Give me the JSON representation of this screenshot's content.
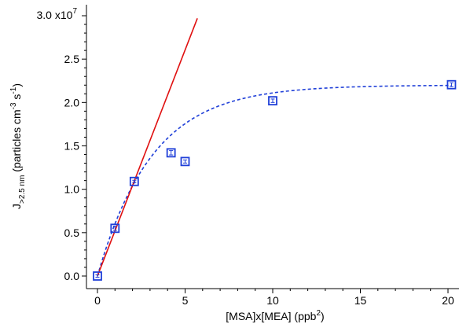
{
  "chart_data": {
    "type": "scatter",
    "x_axis": {
      "label_main": "[MSA]x[MEA] (ppb",
      "label_sup": "2",
      "label_close": ")",
      "ticks": [
        0,
        5,
        10,
        15,
        20
      ],
      "tick_labels": [
        "0",
        "5",
        "10",
        "15",
        "20"
      ],
      "minor_ticks": [
        1,
        2,
        3,
        4,
        6,
        7,
        8,
        9,
        11,
        12,
        13,
        14,
        16,
        17,
        18,
        19
      ],
      "range": [
        -0.7,
        20.4
      ]
    },
    "y_axis": {
      "label_main": "J",
      "label_sub": ">2.5 nm",
      "label_mid": " (particles cm",
      "label_sup1": "-3",
      "label_mid2": " s",
      "label_sup2": "-1",
      "label_close": ")",
      "ticks": [
        0,
        5000000,
        10000000,
        15000000,
        20000000,
        25000000,
        30000000
      ],
      "tick_labels": [
        "0.0",
        "0.5",
        "1.0",
        "1.5",
        "2.0",
        "2.5",
        ""
      ],
      "top_label_main": "3.0 x10",
      "top_label_exp": "7",
      "minor_ticks": [
        1000000,
        2000000,
        3000000,
        4000000,
        6000000,
        7000000,
        8000000,
        9000000,
        11000000,
        12000000,
        13000000,
        14000000,
        16000000,
        17000000,
        18000000,
        19000000,
        21000000,
        22000000,
        23000000,
        24000000,
        26000000,
        27000000,
        28000000,
        29000000
      ],
      "range": [
        -300000,
        30000000
      ]
    },
    "series": [
      {
        "type": "scatter",
        "marker": "open-square",
        "color": "#1f3fd8",
        "points": [
          {
            "x": 0,
            "y": 0,
            "err": 60000
          },
          {
            "x": 1,
            "y": 5500000,
            "err": 250000
          },
          {
            "x": 2.1,
            "y": 10900000,
            "err": 120000
          },
          {
            "x": 4.2,
            "y": 14200000,
            "err": 250000
          },
          {
            "x": 5,
            "y": 13200000,
            "err": 180000
          },
          {
            "x": 10,
            "y": 20200000,
            "err": 200000
          },
          {
            "x": 20.2,
            "y": 22050000,
            "err": 220000
          }
        ]
      },
      {
        "type": "line",
        "style": "solid",
        "color": "#e01010",
        "points": [
          {
            "x": 0,
            "y": 0
          },
          {
            "x": 5.7,
            "y": 29700000
          }
        ]
      },
      {
        "type": "line",
        "style": "dashed",
        "color": "#1f3fd8",
        "function": "exp-saturation",
        "params": {
          "ymax": 22000000,
          "k": 0.32
        },
        "x_range": [
          0,
          20.2
        ]
      }
    ]
  }
}
